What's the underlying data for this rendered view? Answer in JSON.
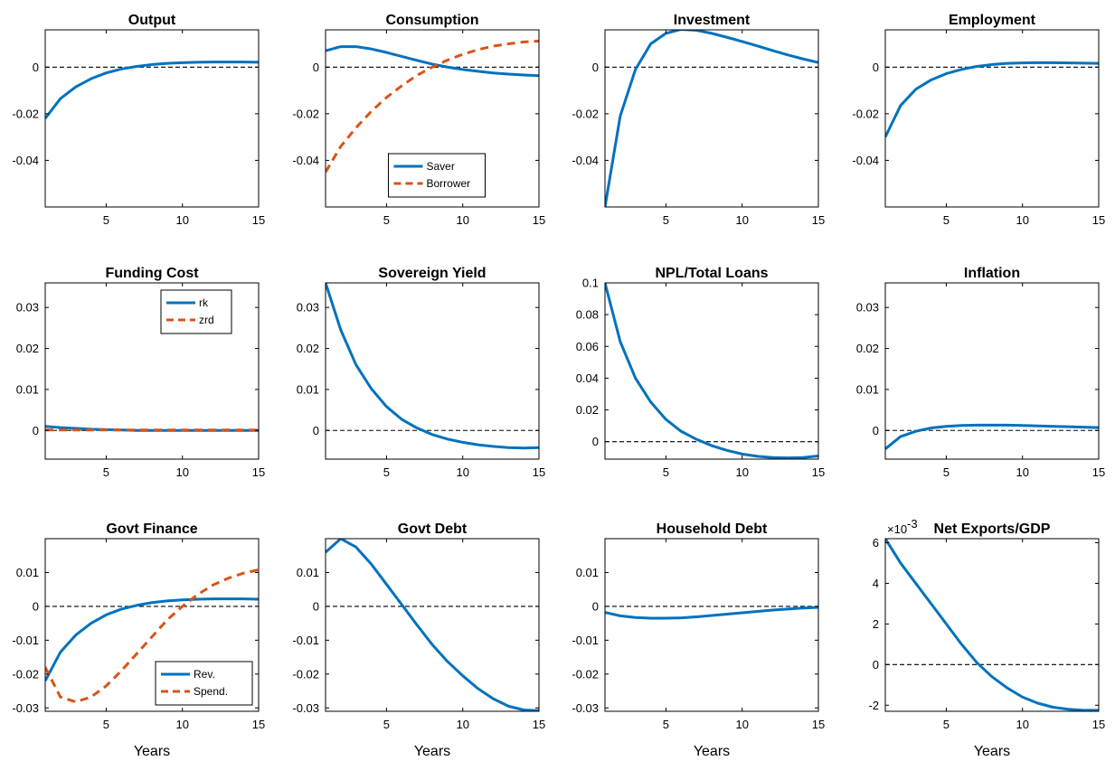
{
  "colors": {
    "blue": "#0072BD",
    "orange": "#D95319",
    "axis": "#000000"
  },
  "chart_data": [
    {
      "title": "Output",
      "type": "line",
      "xlim": [
        1,
        15
      ],
      "ylim": [
        -0.06,
        0.016
      ],
      "xticks": [
        5,
        10,
        15
      ],
      "xtick_labels": [
        "5",
        "10",
        "15"
      ],
      "yticks": [
        -0.04,
        -0.02,
        0
      ],
      "ytick_labels": [
        "-0.04",
        "-0.02",
        "0"
      ],
      "series": [
        {
          "color": "blue",
          "dash": false,
          "x": [
            1,
            2,
            3,
            4,
            5,
            6,
            7,
            8,
            9,
            10,
            11,
            12,
            13,
            14,
            15
          ],
          "y": [
            -0.022,
            -0.0135,
            -0.0085,
            -0.005,
            -0.0025,
            -0.0008,
            0.0003,
            0.0011,
            0.0016,
            0.0019,
            0.0021,
            0.0022,
            0.0022,
            0.0022,
            0.0021
          ]
        }
      ]
    },
    {
      "title": "Consumption",
      "type": "line",
      "xlim": [
        1,
        15
      ],
      "ylim": [
        -0.06,
        0.016
      ],
      "xticks": [
        5,
        10,
        15
      ],
      "xtick_labels": [
        "5",
        "10",
        "15"
      ],
      "yticks": [
        -0.04,
        -0.02,
        0
      ],
      "ytick_labels": [
        "-0.04",
        "-0.02",
        "0"
      ],
      "legend": {
        "position": "bottom-center"
      },
      "series": [
        {
          "name": "Saver",
          "color": "blue",
          "dash": false,
          "x": [
            1,
            2,
            3,
            4,
            5,
            6,
            7,
            8,
            9,
            10,
            11,
            12,
            13,
            14,
            15
          ],
          "y": [
            0.007,
            0.0088,
            0.0088,
            0.0078,
            0.0063,
            0.0046,
            0.0029,
            0.0013,
            0.0,
            -0.001,
            -0.0018,
            -0.0025,
            -0.003,
            -0.0034,
            -0.0037
          ]
        },
        {
          "name": "Borrower",
          "color": "orange",
          "dash": true,
          "x": [
            1,
            2,
            3,
            4,
            5,
            6,
            7,
            8,
            9,
            10,
            11,
            12,
            13,
            14,
            15
          ],
          "y": [
            -0.045,
            -0.034,
            -0.026,
            -0.019,
            -0.013,
            -0.008,
            -0.0035,
            0.0,
            0.003,
            0.0055,
            0.0075,
            0.009,
            0.01,
            0.0108,
            0.0112
          ]
        }
      ]
    },
    {
      "title": "Investment",
      "type": "line",
      "xlim": [
        1,
        15
      ],
      "ylim": [
        -0.06,
        0.016
      ],
      "xticks": [
        5,
        10,
        15
      ],
      "xtick_labels": [
        "5",
        "10",
        "15"
      ],
      "yticks": [
        -0.04,
        -0.02,
        0
      ],
      "ytick_labels": [
        "-0.04",
        "-0.02",
        "0"
      ],
      "series": [
        {
          "color": "blue",
          "dash": false,
          "x": [
            1,
            2,
            3,
            4,
            5,
            6,
            7,
            8,
            9,
            10,
            11,
            12,
            13,
            14,
            15
          ],
          "y": [
            -0.06,
            -0.021,
            -0.001,
            0.01,
            0.0145,
            0.0162,
            0.0158,
            0.0145,
            0.0128,
            0.011,
            0.0091,
            0.0071,
            0.0052,
            0.0035,
            0.002
          ]
        }
      ]
    },
    {
      "title": "Employment",
      "type": "line",
      "xlim": [
        1,
        15
      ],
      "ylim": [
        -0.06,
        0.016
      ],
      "xticks": [
        5,
        10,
        15
      ],
      "xtick_labels": [
        "5",
        "10",
        "15"
      ],
      "yticks": [
        -0.04,
        -0.02,
        0
      ],
      "ytick_labels": [
        "-0.04",
        "-0.02",
        "0"
      ],
      "series": [
        {
          "color": "blue",
          "dash": false,
          "x": [
            1,
            2,
            3,
            4,
            5,
            6,
            7,
            8,
            9,
            10,
            11,
            12,
            13,
            14,
            15
          ],
          "y": [
            -0.03,
            -0.0165,
            -0.0095,
            -0.0055,
            -0.0028,
            -0.001,
            0.0003,
            0.0011,
            0.0016,
            0.0018,
            0.0019,
            0.0019,
            0.0018,
            0.0017,
            0.0016
          ]
        }
      ]
    },
    {
      "title": "Funding Cost",
      "type": "line",
      "xlim": [
        1,
        15
      ],
      "ylim": [
        -0.007,
        0.036
      ],
      "xticks": [
        5,
        10,
        15
      ],
      "xtick_labels": [
        "5",
        "10",
        "15"
      ],
      "yticks": [
        0,
        0.01,
        0.02,
        0.03
      ],
      "ytick_labels": [
        "0",
        "0.01",
        "0.02",
        "0.03"
      ],
      "legend": {
        "position": "top-right"
      },
      "series": [
        {
          "name": "rk",
          "color": "blue",
          "dash": false,
          "x": [
            1,
            2,
            3,
            4,
            5,
            6,
            7,
            8,
            9,
            10,
            11,
            12,
            13,
            14,
            15
          ],
          "y": [
            0.001,
            0.0007,
            0.0005,
            0.0003,
            0.0002,
            0.0001,
            0.0,
            0.0,
            0.0,
            0.0,
            0.0,
            0.0,
            0.0,
            0.0,
            0.0
          ]
        },
        {
          "name": "zrd",
          "color": "orange",
          "dash": true,
          "x": [
            1,
            2,
            3,
            4,
            5,
            6,
            7,
            8,
            9,
            10,
            11,
            12,
            13,
            14,
            15
          ],
          "y": [
            0.0001,
            0.0001,
            0.0001,
            0.0001,
            0.0001,
            0.0001,
            0.0001,
            0.0001,
            0.0001,
            0.0001,
            0.0001,
            0.0001,
            0.0001,
            0.0001,
            0.0001
          ]
        }
      ]
    },
    {
      "title": "Sovereign Yield",
      "type": "line",
      "xlim": [
        1,
        15
      ],
      "ylim": [
        -0.007,
        0.036
      ],
      "xticks": [
        5,
        10,
        15
      ],
      "xtick_labels": [
        "5",
        "10",
        "15"
      ],
      "yticks": [
        0,
        0.01,
        0.02,
        0.03
      ],
      "ytick_labels": [
        "0",
        "0.01",
        "0.02",
        "0.03"
      ],
      "series": [
        {
          "color": "blue",
          "dash": false,
          "x": [
            1,
            2,
            3,
            4,
            5,
            6,
            7,
            8,
            9,
            10,
            11,
            12,
            13,
            14,
            15
          ],
          "y": [
            0.036,
            0.0245,
            0.016,
            0.0102,
            0.0058,
            0.0027,
            0.0006,
            -0.001,
            -0.0021,
            -0.0029,
            -0.0035,
            -0.0039,
            -0.0042,
            -0.0043,
            -0.0042
          ]
        }
      ]
    },
    {
      "title": "NPL/Total Loans",
      "type": "line",
      "xlim": [
        1,
        15
      ],
      "ylim": [
        -0.011,
        0.1
      ],
      "xticks": [
        5,
        10,
        15
      ],
      "xtick_labels": [
        "5",
        "10",
        "15"
      ],
      "yticks": [
        0,
        0.02,
        0.04,
        0.06,
        0.08,
        0.1
      ],
      "ytick_labels": [
        "0",
        "0.02",
        "0.04",
        "0.06",
        "0.08",
        "0.1"
      ],
      "series": [
        {
          "color": "blue",
          "dash": false,
          "x": [
            1,
            2,
            3,
            4,
            5,
            6,
            7,
            8,
            9,
            10,
            11,
            12,
            13,
            14,
            15
          ],
          "y": [
            0.1,
            0.063,
            0.04,
            0.025,
            0.014,
            0.0065,
            0.0015,
            -0.0025,
            -0.0055,
            -0.0078,
            -0.0092,
            -0.01,
            -0.0102,
            -0.01,
            -0.009
          ]
        }
      ]
    },
    {
      "title": "Inflation",
      "type": "line",
      "xlim": [
        1,
        15
      ],
      "ylim": [
        -0.007,
        0.036
      ],
      "xticks": [
        5,
        10,
        15
      ],
      "xtick_labels": [
        "5",
        "10",
        "15"
      ],
      "yticks": [
        0,
        0.01,
        0.02,
        0.03
      ],
      "ytick_labels": [
        "0",
        "0.01",
        "0.02",
        "0.03"
      ],
      "series": [
        {
          "color": "blue",
          "dash": false,
          "x": [
            1,
            2,
            3,
            4,
            5,
            6,
            7,
            8,
            9,
            10,
            11,
            12,
            13,
            14,
            15
          ],
          "y": [
            -0.0045,
            -0.0015,
            -0.0002,
            0.0006,
            0.001,
            0.0012,
            0.0013,
            0.0013,
            0.0013,
            0.0012,
            0.0011,
            0.001,
            0.0009,
            0.0008,
            0.0007
          ]
        }
      ]
    },
    {
      "title": "Govt Finance",
      "type": "line",
      "xlim": [
        1,
        15
      ],
      "ylim": [
        -0.031,
        0.02
      ],
      "xticks": [
        5,
        10,
        15
      ],
      "xtick_labels": [
        "5",
        "10",
        "15"
      ],
      "xlabel": "Years",
      "yticks": [
        -0.03,
        -0.02,
        -0.01,
        0,
        0.01
      ],
      "ytick_labels": [
        "-0.03",
        "-0.02",
        "-0.01",
        "0",
        "0.01"
      ],
      "legend": {
        "position": "bottom-right"
      },
      "series": [
        {
          "name": "Rev.",
          "color": "blue",
          "dash": false,
          "x": [
            1,
            2,
            3,
            4,
            5,
            6,
            7,
            8,
            9,
            10,
            11,
            12,
            13,
            14,
            15
          ],
          "y": [
            -0.022,
            -0.0135,
            -0.0085,
            -0.005,
            -0.0025,
            -0.0008,
            0.0003,
            0.0011,
            0.0016,
            0.0019,
            0.0021,
            0.0022,
            0.0022,
            0.0022,
            0.0021
          ]
        },
        {
          "name": "Spend.",
          "color": "orange",
          "dash": true,
          "x": [
            1,
            2,
            3,
            4,
            5,
            6,
            7,
            8,
            9,
            10,
            11,
            12,
            13,
            14,
            15
          ],
          "y": [
            -0.018,
            -0.0268,
            -0.0282,
            -0.0268,
            -0.0235,
            -0.019,
            -0.014,
            -0.009,
            -0.004,
            0.0,
            0.0035,
            0.0063,
            0.0083,
            0.0098,
            0.0108
          ]
        }
      ]
    },
    {
      "title": "Govt Debt",
      "type": "line",
      "xlim": [
        1,
        15
      ],
      "ylim": [
        -0.031,
        0.02
      ],
      "xticks": [
        5,
        10,
        15
      ],
      "xtick_labels": [
        "5",
        "10",
        "15"
      ],
      "xlabel": "Years",
      "yticks": [
        -0.03,
        -0.02,
        -0.01,
        0,
        0.01
      ],
      "ytick_labels": [
        "-0.03",
        "-0.02",
        "-0.01",
        "0",
        "0.01"
      ],
      "series": [
        {
          "color": "blue",
          "dash": false,
          "x": [
            1,
            2,
            3,
            4,
            5,
            6,
            7,
            8,
            9,
            10,
            11,
            12,
            13,
            14,
            15
          ],
          "y": [
            0.016,
            0.02,
            0.0175,
            0.0125,
            0.0065,
            0.0005,
            -0.0055,
            -0.0113,
            -0.0163,
            -0.0205,
            -0.0243,
            -0.0273,
            -0.0295,
            -0.0306,
            -0.0308
          ]
        }
      ]
    },
    {
      "title": "Household Debt",
      "type": "line",
      "xlim": [
        1,
        15
      ],
      "ylim": [
        -0.031,
        0.02
      ],
      "xticks": [
        5,
        10,
        15
      ],
      "xtick_labels": [
        "5",
        "10",
        "15"
      ],
      "xlabel": "Years",
      "yticks": [
        -0.03,
        -0.02,
        -0.01,
        0,
        0.01
      ],
      "ytick_labels": [
        "-0.03",
        "-0.02",
        "-0.01",
        "0",
        "0.01"
      ],
      "series": [
        {
          "color": "blue",
          "dash": false,
          "x": [
            1,
            2,
            3,
            4,
            5,
            6,
            7,
            8,
            9,
            10,
            11,
            12,
            13,
            14,
            15
          ],
          "y": [
            -0.0018,
            -0.0028,
            -0.0033,
            -0.0035,
            -0.0035,
            -0.0034,
            -0.0031,
            -0.0027,
            -0.0023,
            -0.0019,
            -0.0015,
            -0.0011,
            -0.0008,
            -0.0005,
            -0.0003
          ]
        }
      ]
    },
    {
      "title": "Net Exports/GDP",
      "type": "line",
      "xlim": [
        1,
        15
      ],
      "ylim": [
        -2.3,
        6.2
      ],
      "y_exponent": "-3",
      "y_exponent_prefix": "×10",
      "xticks": [
        5,
        10,
        15
      ],
      "xtick_labels": [
        "5",
        "10",
        "15"
      ],
      "xlabel": "Years",
      "yticks": [
        -2,
        0,
        2,
        4,
        6
      ],
      "ytick_labels": [
        "-2",
        "0",
        "2",
        "4",
        "6"
      ],
      "series": [
        {
          "color": "blue",
          "dash": false,
          "x": [
            1,
            2,
            3,
            4,
            5,
            6,
            7,
            8,
            9,
            10,
            11,
            12,
            13,
            14,
            15
          ],
          "y": [
            6.2,
            5.0,
            4.0,
            3.0,
            2.0,
            1.0,
            0.1,
            -0.6,
            -1.15,
            -1.6,
            -1.9,
            -2.1,
            -2.2,
            -2.25,
            -2.25
          ]
        }
      ]
    }
  ]
}
